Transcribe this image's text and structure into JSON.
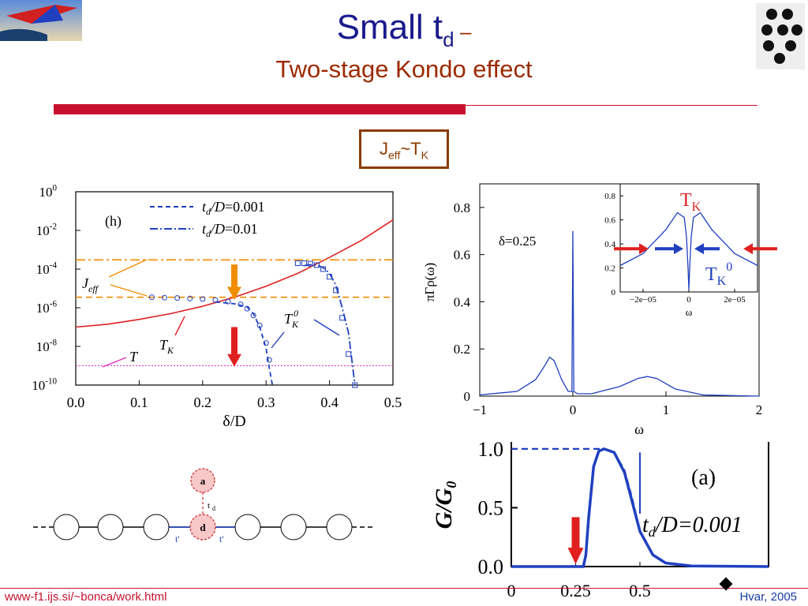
{
  "title": {
    "main": "Small t",
    "sub": "d",
    "dash": " –"
  },
  "subtitle": "Two-stage Kondo effect",
  "jeff_box": {
    "j": "J",
    "eff": "eff",
    "tilde": "~T",
    "k": "K"
  },
  "footer": {
    "left": "www-f1.ijs.si/~bonca/work.html",
    "right": "Hvar, 2005"
  },
  "colors": {
    "title": "#1a1a8c",
    "subtitle": "#9c2a00",
    "accent_red": "#c8102e",
    "box": "#8b3a00"
  },
  "chart_data": [
    {
      "type": "line",
      "id": "panel-h",
      "panel_label": "(h)",
      "xlabel": "δ/D",
      "x_ticks": [
        "0.0",
        "0.1",
        "0.2",
        "0.3",
        "0.4",
        "0.5"
      ],
      "y_scale": "log",
      "y_ticks": [
        "10^0",
        "10^-2",
        "10^-4",
        "10^-6",
        "10^-8",
        "10^-10"
      ],
      "xlim": [
        0,
        0.5
      ],
      "ylim": [
        1e-10,
        1
      ],
      "legend": [
        {
          "name": "t_d/D=0.001",
          "style": "dashed"
        },
        {
          "name": "t_d/D=0.01",
          "style": "dash-dot"
        }
      ],
      "annotations": [
        "J_eff",
        "T_K",
        "T_K^0",
        "T"
      ],
      "series": [
        {
          "name": "T_K",
          "x": [
            0.0,
            0.05,
            0.1,
            0.15,
            0.2,
            0.25,
            0.3,
            0.35,
            0.4,
            0.45,
            0.5
          ],
          "y": [
            1e-07,
            1.4e-07,
            2.5e-07,
            5e-07,
            1.2e-06,
            3.5e-06,
            1.3e-05,
            6e-05,
            0.0004,
            0.003,
            0.035
          ]
        },
        {
          "name": "J_eff t_d/D=0.001",
          "x": [
            0.0,
            0.5
          ],
          "y": [
            3.5e-06,
            3.5e-06
          ]
        },
        {
          "name": "J_eff t_d/D=0.01",
          "x": [
            0.0,
            0.5
          ],
          "y": [
            0.0003,
            0.0003
          ]
        },
        {
          "name": "T",
          "x": [
            0.0,
            0.5
          ],
          "y": [
            1e-09,
            1e-09
          ]
        },
        {
          "name": "T_K^0 t_d/D=0.001",
          "x": [
            0.22,
            0.25,
            0.27,
            0.28,
            0.29,
            0.3,
            0.305,
            0.31
          ],
          "y": [
            2e-06,
            1.6e-06,
            1.1e-06,
            5e-07,
            1e-07,
            8e-09,
            8e-10,
            1e-10
          ]
        },
        {
          "name": "T_K^0 t_d/D=0.01",
          "x": [
            0.36,
            0.37,
            0.38,
            0.39,
            0.4,
            0.41,
            0.42,
            0.43,
            0.44
          ],
          "y": [
            0.00015,
            0.00017,
            0.00016,
            0.00012,
            6e-05,
            1.5e-05,
            1e-06,
            5e-08,
            1e-10
          ]
        },
        {
          "name": "NRG circles",
          "x": [
            0.12,
            0.14,
            0.16,
            0.18,
            0.2,
            0.22,
            0.24,
            0.26,
            0.27,
            0.28,
            0.29,
            0.3,
            0.305
          ],
          "y": [
            3.5e-06,
            3.3e-06,
            3.2e-06,
            3e-06,
            2.8e-06,
            2.5e-06,
            2.1e-06,
            1.5e-06,
            9e-07,
            4e-07,
            1.2e-07,
            1.5e-08,
            2e-09
          ]
        },
        {
          "name": "NRG squares",
          "x": [
            0.35,
            0.36,
            0.37,
            0.38,
            0.39,
            0.4,
            0.41,
            0.42,
            0.43,
            0.44
          ],
          "y": [
            0.0002,
            0.0002,
            0.00019,
            0.00016,
            0.0001,
            4e-05,
            8e-06,
            3e-07,
            4e-09,
            1e-10
          ]
        }
      ]
    },
    {
      "type": "line",
      "id": "panel-spectral",
      "annotation": "δ=0.25",
      "xlabel": "ω",
      "ylabel": "πΓρ(ω)",
      "x_ticks": [
        "−1",
        "0",
        "1",
        "2"
      ],
      "y_ticks": [
        "0",
        "0.2",
        "0.4",
        "0.6",
        "0.8"
      ],
      "xlim": [
        -1,
        2
      ],
      "ylim": [
        0,
        0.9
      ],
      "series": [
        {
          "name": "spectral",
          "x": [
            -1.0,
            -0.6,
            -0.4,
            -0.3,
            -0.25,
            -0.2,
            -0.12,
            -0.05,
            -0.01,
            0.0,
            0.01,
            0.05,
            0.2,
            0.5,
            0.7,
            0.8,
            0.9,
            1.1,
            1.4,
            2.0
          ],
          "y": [
            0.005,
            0.02,
            0.07,
            0.13,
            0.165,
            0.15,
            0.07,
            0.02,
            0.02,
            0.7,
            0.02,
            0.01,
            0.01,
            0.04,
            0.075,
            0.083,
            0.075,
            0.03,
            0.005,
            0.0
          ]
        }
      ],
      "inset": {
        "x_ticks": [
          "−2e−05",
          "0",
          "2e−05"
        ],
        "y_ticks": [
          "0",
          "0.2",
          "0.4",
          "0.6",
          "0.8"
        ],
        "xlabel": "ω",
        "xlim": [
          -3e-05,
          3e-05
        ],
        "ylim": [
          0,
          0.9
        ],
        "labels": {
          "tk": "T",
          "tk_sub": "K",
          "tk0": "T",
          "tk0_sub": "K",
          "tk0_sup": "0"
        },
        "series": [
          {
            "name": "zoom",
            "x": [
              -3e-05,
              -2e-05,
              -1e-05,
              -5e-06,
              -2e-06,
              -1e-06,
              -3e-07,
              0,
              3e-07,
              1e-06,
              2e-06,
              5e-06,
              1e-05,
              2e-05,
              3e-05
            ],
            "y": [
              0.22,
              0.32,
              0.52,
              0.66,
              0.62,
              0.45,
              0.18,
              0.02,
              0.18,
              0.45,
              0.62,
              0.66,
              0.52,
              0.32,
              0.22
            ]
          }
        ]
      }
    },
    {
      "type": "line",
      "id": "panel-a",
      "panel_label": "(a)",
      "annotation": "t_d/D=0.001",
      "ylabel": "G/G_0",
      "x_ticks": [
        "0",
        "0.25",
        "0.5"
      ],
      "y_ticks": [
        "0.0",
        "0.5",
        "1.0"
      ],
      "xlim": [
        0,
        1
      ],
      "ylim": [
        0,
        1.1
      ],
      "series": [
        {
          "name": "G solid",
          "x": [
            0.0,
            0.28,
            0.29,
            0.3,
            0.32,
            0.34,
            0.36,
            0.4,
            0.44,
            0.47,
            0.5,
            0.55,
            0.6,
            0.7,
            1.0
          ],
          "y": [
            0,
            0,
            0.1,
            0.4,
            0.85,
            0.98,
            1.0,
            0.97,
            0.8,
            0.55,
            0.3,
            0.1,
            0.03,
            0.005,
            0
          ]
        },
        {
          "name": "G dashed",
          "x": [
            0.0,
            0.3,
            0.32,
            0.34,
            0.36,
            0.4,
            0.44,
            0.47,
            0.5
          ],
          "y": [
            1.0,
            1.0,
            1.0,
            1.0,
            1.0,
            0.97,
            0.82,
            0.58,
            0.3
          ]
        }
      ]
    }
  ]
}
